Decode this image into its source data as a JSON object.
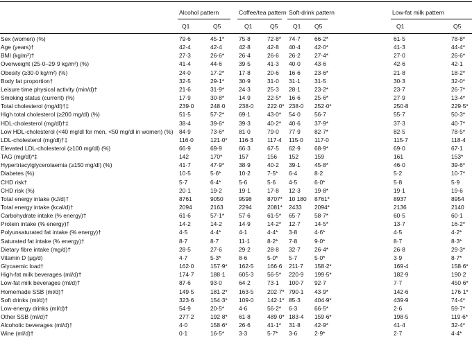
{
  "patterns": [
    "Alcohol pattern",
    "Coffee/tea pattern",
    "Soft-drink pattern",
    "Low-fat milk pattern"
  ],
  "quintiles": [
    "Q1",
    "Q5",
    "Q1",
    "Q5",
    "Q1",
    "Q5",
    "Q1",
    "Q5"
  ],
  "rows": [
    {
      "label": "Sex (women) (%)",
      "v": [
        "79·6",
        "45·1*",
        "75·8",
        "72·8*",
        "74·7",
        "66·2*",
        "61·5",
        "78·8*"
      ]
    },
    {
      "label": "Age (years)†",
      "v": [
        "42·4",
        "42·4",
        "42·8",
        "42·8",
        "40·4",
        "42·0*",
        "41·3",
        "44·4*"
      ]
    },
    {
      "label": "BMI (kg/m²)†",
      "v": [
        "27·3",
        "26·6*",
        "26·4",
        "26·6",
        "26·2",
        "27·4*",
        "27·0",
        "26·6*"
      ]
    },
    {
      "label": "Overweight (25·0–29·9 kg/m²) (%)",
      "v": [
        "41·4",
        "44·6",
        "39·5",
        "41·3",
        "40·0",
        "43·6",
        "42·6",
        "42·1"
      ]
    },
    {
      "label": "Obesity (≥30·0 kg/m²) (%)",
      "v": [
        "24·0",
        "17·2*",
        "17·8",
        "20·6",
        "16·6",
        "23·6*",
        "21·8",
        "18·2*"
      ]
    },
    {
      "label": "Body fat proportion†",
      "v": [
        "32·5",
        "29·1*",
        "30·9",
        "31·0",
        "31·1",
        "31·5",
        "30·3",
        "32·0*"
      ]
    },
    {
      "label": "Leisure time physical activity (min/d)†",
      "v": [
        "21·6",
        "31·9*",
        "24·3",
        "25·3",
        "28·1",
        "23·2*",
        "23·7",
        "26·7*"
      ]
    },
    {
      "label": "Smoking status (current) (%)",
      "v": [
        "17·9",
        "30·8*",
        "14·9",
        "22·5*",
        "16·6",
        "25·6*",
        "27·9",
        "13·4*"
      ]
    },
    {
      "label": "Total cholesterol (mg/dl)†‡",
      "v": [
        "239·0",
        "248·0",
        "238·0",
        "222·0*",
        "238·0",
        "252·0*",
        "250·8",
        "229·5*"
      ]
    },
    {
      "label": "High total cholesterol (≥200 mg/dl) (%)",
      "v": [
        "51·5",
        "57·2*",
        "69·1",
        "43·0*",
        "54·0",
        "56·7",
        "55·7",
        "50·3*"
      ]
    },
    {
      "label": "HDL-cholesterol (mg/dl)†‡",
      "v": [
        "38·4",
        "39·6*",
        "39·3",
        "40·2*",
        "40·6",
        "37·9*",
        "37·3",
        "40·7*"
      ]
    },
    {
      "label": "Low HDL-cholesterol (<40 mg/dl for men, <50 mg/dl in women) (%)",
      "v": [
        "84·9",
        "73·6*",
        "81·0",
        "79·0",
        "77·9",
        "82·7*",
        "82·5",
        "78·5*"
      ]
    },
    {
      "label": "LDL-cholesterol (mg/dl)†‡",
      "v": [
        "116·0",
        "121·0*",
        "116·3",
        "117·4",
        "115·0",
        "117·0",
        "115·7",
        "118·4"
      ]
    },
    {
      "label": "Elevated LDL-cholesterol (≥100 mg/dl) (%)",
      "v": [
        "66·9",
        "69·9",
        "66·3",
        "67·5",
        "62·9",
        "68·9*",
        "69·0",
        "67·1"
      ]
    },
    {
      "label": "TAG (mg/dl)*‡",
      "v": [
        "142",
        "170*",
        "157",
        "156",
        "152",
        "159",
        "161",
        "153*"
      ]
    },
    {
      "label": "Hypertriacylglycerolaemia (≥150 mg/dl) (%)",
      "v": [
        "41·7",
        "47·9*",
        "38·9",
        "40·2",
        "39·1",
        "45·8*",
        "46·0",
        "39·6*"
      ]
    },
    {
      "label": "Diabetes (%)",
      "v": [
        "10·5",
        "5·6*",
        "10·2",
        "7·5*",
        "6·4",
        "8·2",
        "5·2",
        "10·7*"
      ]
    },
    {
      "label": "CHD risk†",
      "v": [
        "5·7",
        "6·4*",
        "5·6",
        "5·6",
        "4·5",
        "6·0*",
        "5·8",
        "5·9"
      ]
    },
    {
      "label": "CHD risk (%)",
      "v": [
        "20·1",
        "19·2",
        "19·1",
        "17·8",
        "12·3",
        "19·8*",
        "19·1",
        "19·6"
      ]
    },
    {
      "label": "Total energy intake (kJ/d)†",
      "v": [
        "8761",
        "9050",
        "9598",
        "8707*",
        "10 180",
        "8761*",
        "8937",
        "8954"
      ]
    },
    {
      "label": "Total energy intake (kcal/d)†",
      "v": [
        "2094",
        "2163",
        "2294",
        "2081*",
        "2433",
        "2094*",
        "2136",
        "2140"
      ]
    },
    {
      "label": "Carbohydrate intake (% energy)†",
      "v": [
        "61·6",
        "57·1*",
        "57·6",
        "61·5*",
        "65·7",
        "58·7*",
        "60·5",
        "60·1"
      ]
    },
    {
      "label": "Protein intake (% energy)†",
      "v": [
        "14·2",
        "14·2",
        "14·9",
        "14·2*",
        "12·7",
        "14·5*",
        "13·7",
        "16·2*"
      ]
    },
    {
      "label": "Polyunsaturated fat intake (% energy)†",
      "v": [
        "4·5",
        "4·4*",
        "4·1",
        "4·4*",
        "3·8",
        "4·6*",
        "4·5",
        "4·2*"
      ]
    },
    {
      "label": "Saturated fat intake (% energy)†",
      "v": [
        "8·7",
        "8·7",
        "11·1",
        "8·2*",
        "7·8",
        "9·0*",
        "8·7",
        "8·3*"
      ]
    },
    {
      "label": "Dietary fibre intake (mg/d)†",
      "v": [
        "28·5",
        "27·6",
        "29·2",
        "28·8",
        "32·7",
        "26·4*",
        "26·8",
        "29·3*"
      ]
    },
    {
      "label": "Vitamin D (μg/d)",
      "v": [
        "4·7",
        "5·3*",
        "8·6",
        "5·0*",
        "5·7",
        "5·0*",
        "3·9",
        "8·7*"
      ]
    },
    {
      "label": "Glycaemic load†",
      "v": [
        "162·0",
        "157·9*",
        "162·5",
        "166·6",
        "211·7",
        "158·2*",
        "169·4",
        "158·6*"
      ]
    },
    {
      "label": "High-fat milk beverages (ml/d)†",
      "v": [
        "174·7",
        "188·1",
        "605·3",
        "56·5*",
        "220·9",
        "199·5*",
        "182·9",
        "190·2"
      ]
    },
    {
      "label": "Low-fat milk beverages (ml/d)†",
      "v": [
        "87·6",
        "93·0",
        "64·2",
        "73·1",
        "100·7",
        "92·7",
        "7·7",
        "450·6*"
      ]
    },
    {
      "label": "Homemade SSB (ml/d)†",
      "v": [
        "149·5",
        "181·2*",
        "163·5",
        "202·7*",
        "790·1",
        "43·9*",
        "142·6",
        "176·1*"
      ]
    },
    {
      "label": "Soft drinks (ml/d)†",
      "v": [
        "323·6",
        "154·3*",
        "109·0",
        "142·1*",
        "85·3",
        "404·9*",
        "439·9",
        "74·4*"
      ]
    },
    {
      "label": "Low-energy drinks (ml/d)†",
      "v": [
        "54·9",
        "20·5*",
        "4·6",
        "56·2*",
        "6·3",
        "66·5*",
        "2·6",
        "59·7*"
      ]
    },
    {
      "label": "Other SSB (ml/d)†",
      "v": [
        "277·2",
        "192·8*",
        "61·8",
        "489·0*",
        "183·4",
        "159·6*",
        "198·5",
        "119·6*"
      ]
    },
    {
      "label": "Alcoholic beverages (ml/d)†",
      "v": [
        "4·0",
        "158·6*",
        "26·6",
        "41·1*",
        "31·8",
        "42·9*",
        "41·4",
        "32·4*"
      ]
    },
    {
      "label": "Wine (ml/d)†",
      "v": [
        "0·1",
        "16·5*",
        "3·3",
        "5·7*",
        "3·6",
        "2·9*",
        "2·7",
        "4·4*"
      ]
    }
  ]
}
